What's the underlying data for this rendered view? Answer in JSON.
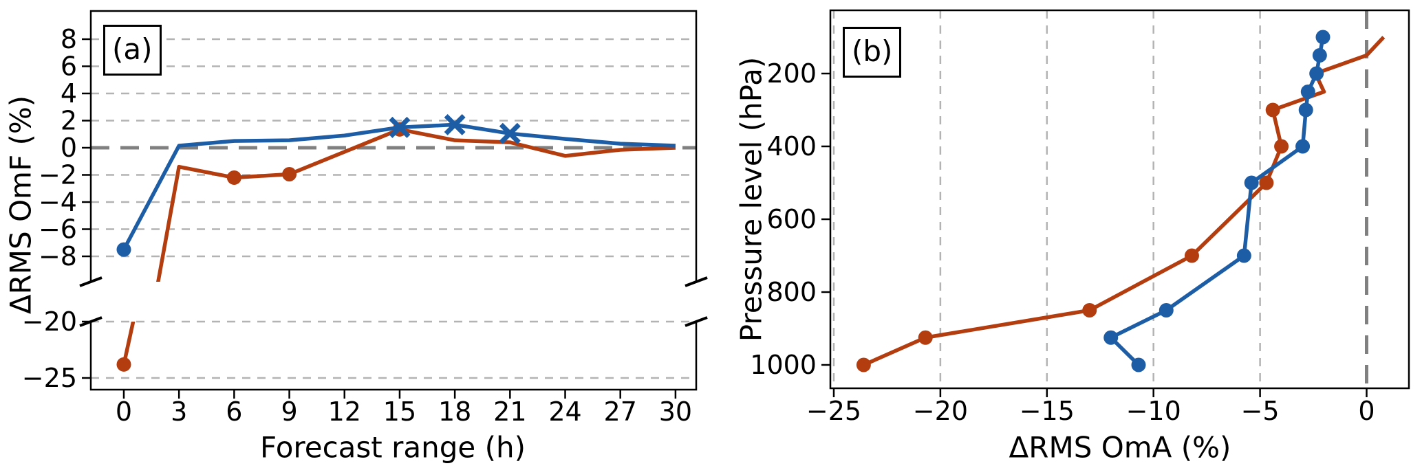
{
  "figure": {
    "background": "#ffffff",
    "grid_color": "#b3b3b3",
    "zero_line_color": "#808080",
    "spine_color": "#000000"
  },
  "chart_data": [
    {
      "panel": "a",
      "type": "line",
      "corner_label": "(a)",
      "xlabel": "Forecast range (h)",
      "ylabel": "ΔRMS OmF (%)",
      "x": [
        0,
        3,
        6,
        9,
        12,
        15,
        18,
        21,
        24,
        27,
        30
      ],
      "xticks": [
        0,
        3,
        6,
        9,
        12,
        15,
        18,
        21,
        24,
        27,
        30
      ],
      "broken_y_axis": {
        "top_ticks": [
          8,
          6,
          4,
          2,
          0,
          -2,
          -4,
          -6,
          -8
        ],
        "bottom_ticks": [
          -20,
          -25
        ],
        "top_range": [
          -10,
          10
        ],
        "bottom_range": [
          -26,
          -20
        ]
      },
      "zero_line": true,
      "grid": "horizontal-dashed",
      "series": [
        {
          "color_role": "red",
          "color": "#b43d10",
          "values": [
            -23.8,
            -1.4,
            -2.2,
            -1.95,
            -0.3,
            1.35,
            0.55,
            0.4,
            -0.6,
            -0.15,
            0.0
          ],
          "markers": [
            {
              "x": 0,
              "type": "circle"
            },
            {
              "x": 6,
              "type": "circle"
            },
            {
              "x": 9,
              "type": "circle"
            },
            {
              "x": 15,
              "type": "circle"
            }
          ]
        },
        {
          "color_role": "blue",
          "color": "#1d5da5",
          "values": [
            -7.5,
            0.15,
            0.5,
            0.55,
            0.9,
            1.5,
            1.7,
            1.05,
            0.65,
            0.3,
            0.15
          ],
          "markers": [
            {
              "x": 0,
              "type": "circle"
            },
            {
              "x": 15,
              "type": "x"
            },
            {
              "x": 18,
              "type": "x"
            },
            {
              "x": 21,
              "type": "x"
            }
          ]
        }
      ]
    },
    {
      "panel": "b",
      "type": "line",
      "corner_label": "(b)",
      "xlabel": "ΔRMS OmA (%)",
      "ylabel": "Pressure level (hPa)",
      "pressure_levels": [
        100,
        150,
        200,
        250,
        300,
        400,
        500,
        700,
        850,
        925,
        1000
      ],
      "xticks": [
        -25,
        -20,
        -15,
        -10,
        -5,
        0
      ],
      "yticks": [
        200,
        400,
        600,
        800,
        1000
      ],
      "xlim": [
        -25.2,
        2.0
      ],
      "ylim": [
        1064,
        26
      ],
      "zero_line": true,
      "grid": "vertical-dashed",
      "series": [
        {
          "color_role": "red",
          "color": "#b43d10",
          "values": [
            0.8,
            0.0,
            -2.4,
            -2.0,
            -4.4,
            -4.0,
            -4.7,
            -8.2,
            -13.0,
            -20.7,
            -23.6
          ],
          "marker": "circle",
          "marker_levels": [
            300,
            400,
            500,
            700,
            850,
            925,
            1000
          ]
        },
        {
          "color_role": "blue",
          "color": "#1d5da5",
          "values": [
            -2.05,
            -2.2,
            -2.35,
            -2.75,
            -2.85,
            -3.0,
            -5.4,
            -5.75,
            -9.4,
            -12.0,
            -10.7
          ],
          "marker": "circle",
          "marker_levels": [
            100,
            150,
            200,
            250,
            300,
            400,
            500,
            700,
            850,
            925,
            1000
          ]
        }
      ]
    }
  ]
}
